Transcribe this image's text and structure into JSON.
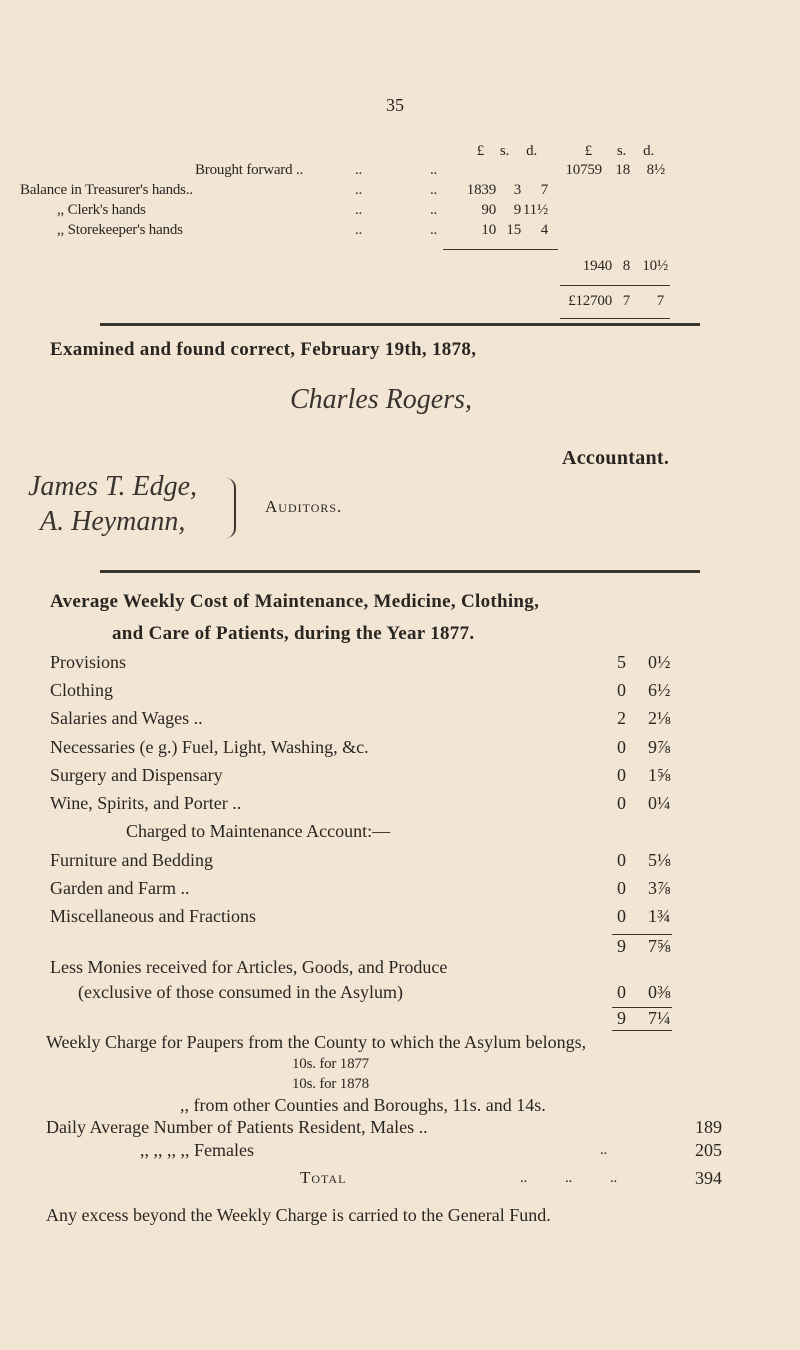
{
  "page_number": "35",
  "balance": {
    "headers": [
      "£",
      "s.",
      "d.",
      "£",
      "s.",
      "d."
    ],
    "rows": [
      {
        "label": "Brought forward ..",
        "lead": "..",
        "c": [
          "",
          "",
          ""
        ],
        "t": [
          "10759",
          "18",
          "8½"
        ]
      },
      {
        "label": "Balance in Treasurer's hands..",
        "lead": "..",
        "c": [
          "1839",
          "3",
          "7"
        ]
      },
      {
        "label": ",,    Clerk's hands",
        "lead": "..",
        "c": [
          "90",
          "9",
          "11½"
        ]
      },
      {
        "label": ",,    Storekeeper's hands",
        "lead": "..",
        "c": [
          "10",
          "15",
          "4"
        ]
      }
    ],
    "subtotal": [
      "1940",
      "8",
      "10½"
    ],
    "total": [
      "£12700",
      "7",
      "7"
    ]
  },
  "examined": "Examined and found correct, February 19th, 1878,",
  "accountant_signature": "Charles Rogers,",
  "accountant_title": "Accountant.",
  "auditor_signatures": [
    "James T. Edge,",
    "A. Heymann,"
  ],
  "auditors_label": "Auditors.",
  "cost": {
    "title_line1": "Average Weekly Cost of Maintenance, Medicine, Clothing,",
    "title_line2": "and Care of Patients, during the Year 1877.",
    "items": [
      {
        "label": "Provisions",
        "s": "5",
        "d": "0½"
      },
      {
        "label": "Clothing",
        "s": "0",
        "d": "6½"
      },
      {
        "label": "Salaries and Wages ..",
        "s": "2",
        "d": "2⅛"
      },
      {
        "label": "Necessaries (e g.) Fuel, Light, Washing, &c.",
        "s": "0",
        "d": "9⅞"
      },
      {
        "label": "Surgery and Dispensary",
        "s": "0",
        "d": "1⅝"
      },
      {
        "label": "Wine, Spirits, and Porter ..",
        "s": "0",
        "d": "0¼"
      }
    ],
    "charged_heading": "Charged to Maintenance Account:—",
    "items2": [
      {
        "label": "Furniture and Bedding",
        "s": "0",
        "d": "5⅛"
      },
      {
        "label": "Garden and Farm ..",
        "s": "0",
        "d": "3⅞"
      },
      {
        "label": "Miscellaneous and Fractions",
        "s": "0",
        "d": "1¾"
      }
    ],
    "subtotal": {
      "s": "9",
      "d": "7⅝"
    },
    "less_line1": "Less Monies received for Articles, Goods, and Produce",
    "less_line2": "(exclusive of those consumed in the Asylum)",
    "less": {
      "s": "0",
      "d": "0⅜"
    },
    "net": {
      "s": "9",
      "d": "7¼"
    }
  },
  "weekly": {
    "line1": "Weekly Charge for Paupers from the County to which the Asylum belongs,",
    "line2": "10s. for 1877",
    "line3": "10s. for 1878",
    "line4": ",,        from other Counties and Boroughs, 11s. and 14s.",
    "daily": "Daily Average Number of Patients Resident, Males ..",
    "males": "189",
    "females_label": ",,       ,,       ,,       ,,    Females",
    "females": "205",
    "total_label": "Total",
    "total": "394",
    "footer": "Any excess beyond the Weekly Charge is carried to the General Fund."
  }
}
